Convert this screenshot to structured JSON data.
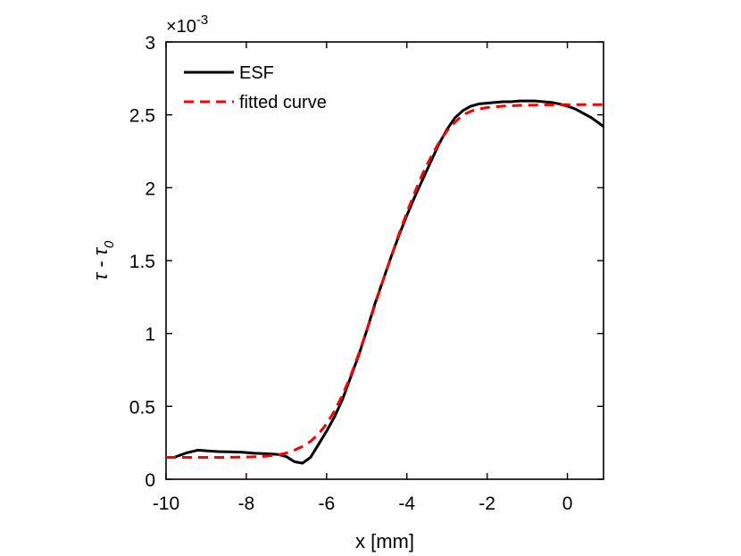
{
  "chart_data": {
    "type": "line",
    "title": "",
    "xlabel": "x [mm]",
    "ylabel": {
      "main": "τ - τ",
      "subscript": "0"
    },
    "xlim": [
      -10,
      0.9
    ],
    "ylim": [
      0,
      3
    ],
    "y_exponent": {
      "prefix": "×10",
      "power": "-3"
    },
    "xticks": [
      -10,
      -8,
      -6,
      -4,
      -2,
      0
    ],
    "xtick_labels": [
      "-10",
      "-8",
      "-6",
      "-4",
      "-2",
      "0"
    ],
    "yticks": [
      0,
      0.5,
      1,
      1.5,
      2,
      2.5,
      3
    ],
    "ytick_labels": [
      "0",
      "0.5",
      "1",
      "1.5",
      "2",
      "2.5",
      "3"
    ],
    "grid": false,
    "legend_position": "top-left",
    "series": [
      {
        "name": "ESF",
        "color": "#000000",
        "style": "solid",
        "x": [
          -10,
          -9.8,
          -9.5,
          -9.2,
          -9.0,
          -8.7,
          -8.4,
          -8.1,
          -7.8,
          -7.5,
          -7.2,
          -7.0,
          -6.8,
          -6.6,
          -6.4,
          -6.2,
          -6.0,
          -5.8,
          -5.6,
          -5.4,
          -5.2,
          -5.0,
          -4.8,
          -4.6,
          -4.4,
          -4.2,
          -4.0,
          -3.8,
          -3.6,
          -3.4,
          -3.2,
          -3.0,
          -2.8,
          -2.6,
          -2.4,
          -2.2,
          -2.0,
          -1.8,
          -1.6,
          -1.4,
          -1.2,
          -1.0,
          -0.8,
          -0.6,
          -0.4,
          -0.2,
          0.0,
          0.2,
          0.4,
          0.6,
          0.9
        ],
        "y": [
          0.15,
          0.15,
          0.18,
          0.2,
          0.195,
          0.19,
          0.188,
          0.185,
          0.178,
          0.175,
          0.17,
          0.155,
          0.12,
          0.11,
          0.15,
          0.24,
          0.33,
          0.43,
          0.55,
          0.7,
          0.85,
          1.02,
          1.2,
          1.36,
          1.52,
          1.67,
          1.81,
          1.94,
          2.06,
          2.18,
          2.3,
          2.4,
          2.48,
          2.53,
          2.56,
          2.575,
          2.58,
          2.585,
          2.59,
          2.59,
          2.595,
          2.595,
          2.595,
          2.59,
          2.585,
          2.575,
          2.56,
          2.54,
          2.51,
          2.48,
          2.42
        ]
      },
      {
        "name": "fitted curve",
        "color": "#ff0000",
        "style": "dashed",
        "x": [
          -10,
          -9.5,
          -9.0,
          -8.5,
          -8.0,
          -7.5,
          -7.2,
          -7.0,
          -6.8,
          -6.6,
          -6.4,
          -6.2,
          -6.0,
          -5.8,
          -5.6,
          -5.4,
          -5.2,
          -5.0,
          -4.8,
          -4.6,
          -4.4,
          -4.2,
          -4.0,
          -3.8,
          -3.6,
          -3.4,
          -3.2,
          -3.0,
          -2.8,
          -2.6,
          -2.4,
          -2.2,
          -2.0,
          -1.8,
          -1.6,
          -1.4,
          -1.2,
          -1.0,
          -0.8,
          -0.6,
          -0.4,
          -0.2,
          0.0,
          0.3,
          0.6,
          0.9
        ],
        "y": [
          0.15,
          0.15,
          0.15,
          0.15,
          0.152,
          0.158,
          0.168,
          0.18,
          0.2,
          0.225,
          0.26,
          0.31,
          0.38,
          0.47,
          0.58,
          0.71,
          0.86,
          1.02,
          1.19,
          1.36,
          1.52,
          1.68,
          1.83,
          1.97,
          2.1,
          2.21,
          2.31,
          2.39,
          2.45,
          2.5,
          2.525,
          2.54,
          2.55,
          2.555,
          2.56,
          2.562,
          2.565,
          2.566,
          2.567,
          2.568,
          2.568,
          2.569,
          2.57,
          2.57,
          2.57,
          2.57
        ]
      }
    ]
  }
}
